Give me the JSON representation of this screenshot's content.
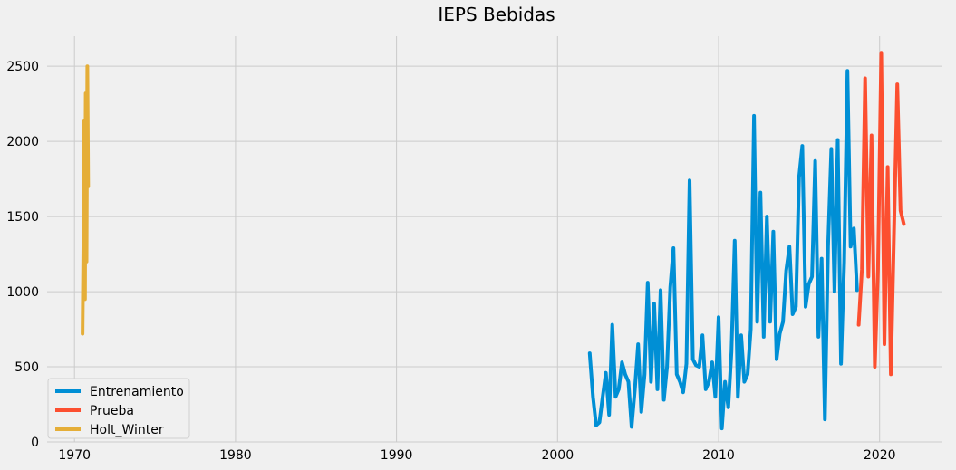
{
  "chart_data": {
    "type": "line",
    "title": "IEPS Bebidas",
    "xlabel": "",
    "ylabel": "",
    "xlim": [
      1968.3,
      2023.9
    ],
    "ylim": [
      0,
      2700
    ],
    "x_ticks": [
      1970,
      1980,
      1990,
      2000,
      2010,
      2020
    ],
    "x_tick_labels": [
      "1970",
      "1980",
      "1990",
      "2000",
      "2010",
      "2020"
    ],
    "y_ticks": [
      0,
      500,
      1000,
      1500,
      2000,
      2500
    ],
    "y_tick_labels": [
      "0",
      "500",
      "1000",
      "1500",
      "2000",
      "2500"
    ],
    "grid": true,
    "legend_position": "lower-left",
    "colors": {
      "background": "#f0f0f0",
      "grid": "#cbcbcb",
      "entrenamiento": "#008fd5",
      "prueba": "#fc4f30",
      "holt_winter": "#e5ae38"
    },
    "series": [
      {
        "name": "Entrenamiento",
        "color": "#008fd5",
        "x": [
          2002.0,
          2002.2,
          2002.4,
          2002.6,
          2002.8,
          2003.0,
          2003.2,
          2003.4,
          2003.6,
          2003.8,
          2004.0,
          2004.2,
          2004.4,
          2004.6,
          2004.8,
          2005.0,
          2005.2,
          2005.4,
          2005.6,
          2005.8,
          2006.0,
          2006.2,
          2006.4,
          2006.6,
          2006.8,
          2007.0,
          2007.2,
          2007.4,
          2007.6,
          2007.8,
          2008.0,
          2008.2,
          2008.4,
          2008.6,
          2008.8,
          2009.0,
          2009.2,
          2009.4,
          2009.6,
          2009.8,
          2010.0,
          2010.2,
          2010.4,
          2010.6,
          2010.8,
          2011.0,
          2011.2,
          2011.4,
          2011.6,
          2011.8,
          2012.0,
          2012.2,
          2012.4,
          2012.6,
          2012.8,
          2013.0,
          2013.2,
          2013.4,
          2013.6,
          2013.8,
          2014.0,
          2014.2,
          2014.4,
          2014.6,
          2014.8,
          2015.0,
          2015.2,
          2015.4,
          2015.6,
          2015.8,
          2016.0,
          2016.2,
          2016.4,
          2016.6,
          2016.8,
          2017.0,
          2017.2,
          2017.4,
          2017.6,
          2017.8,
          2018.0,
          2018.2,
          2018.4,
          2018.6
        ],
        "y": [
          590,
          300,
          110,
          130,
          300,
          460,
          180,
          780,
          300,
          350,
          530,
          450,
          400,
          100,
          350,
          650,
          200,
          450,
          1060,
          400,
          920,
          350,
          1010,
          280,
          500,
          1030,
          1290,
          450,
          400,
          330,
          520,
          1740,
          550,
          510,
          500,
          710,
          350,
          400,
          530,
          300,
          830,
          90,
          400,
          230,
          600,
          1340,
          300,
          710,
          400,
          450,
          750,
          2170,
          800,
          1660,
          700,
          1500,
          800,
          1400,
          550,
          720,
          800,
          1140,
          1300,
          850,
          900,
          1760,
          1970,
          900,
          1050,
          1100,
          1870,
          700,
          1220,
          150,
          1300,
          1950,
          1000,
          2010,
          520,
          1200,
          2470,
          1300,
          1420,
          1010
        ],
        "values": [
          590,
          300,
          110,
          130,
          300,
          460,
          180,
          780,
          300,
          350,
          530,
          450,
          400,
          100,
          350,
          650,
          200,
          450,
          1060,
          400,
          920,
          350,
          1010,
          280,
          500,
          1030,
          1290,
          450,
          400,
          330,
          520,
          1740,
          550,
          510,
          500,
          710,
          350,
          400,
          530,
          300,
          830,
          90,
          400,
          230,
          600,
          1340,
          300,
          710,
          400,
          450,
          750,
          2170,
          800,
          1660,
          700,
          1500,
          800,
          1400,
          550,
          720,
          800,
          1140,
          1300,
          850,
          900,
          1760,
          1970,
          900,
          1050,
          1100,
          1870,
          700,
          1220,
          150,
          1300,
          1950,
          1000,
          2010,
          520,
          1200,
          2470,
          1300,
          1420,
          1010
        ]
      },
      {
        "name": "Prueba",
        "color": "#fc4f30",
        "x": [
          2018.7,
          2018.9,
          2019.1,
          2019.3,
          2019.5,
          2019.7,
          2019.9,
          2020.1,
          2020.3,
          2020.5,
          2020.7,
          2020.9,
          2021.1,
          2021.3,
          2021.5
        ],
        "y": [
          780,
          1150,
          2420,
          1100,
          2040,
          500,
          1150,
          2590,
          650,
          1830,
          450,
          1430,
          2380,
          1540,
          1450
        ],
        "values": [
          780,
          1150,
          2420,
          1100,
          2040,
          500,
          1150,
          2590,
          650,
          1830,
          450,
          1430,
          2380,
          1540,
          1450
        ]
      },
      {
        "name": "Holt_Winter",
        "color": "#e5ae38",
        "x": [
          1970.5,
          1970.55,
          1970.6,
          1970.65,
          1970.7,
          1970.75,
          1970.8,
          1970.85
        ],
        "y": [
          720,
          1300,
          2140,
          950,
          2320,
          1200,
          2500,
          1700
        ],
        "values": [
          720,
          1300,
          2140,
          950,
          2320,
          1200,
          2500,
          1700
        ]
      }
    ]
  }
}
